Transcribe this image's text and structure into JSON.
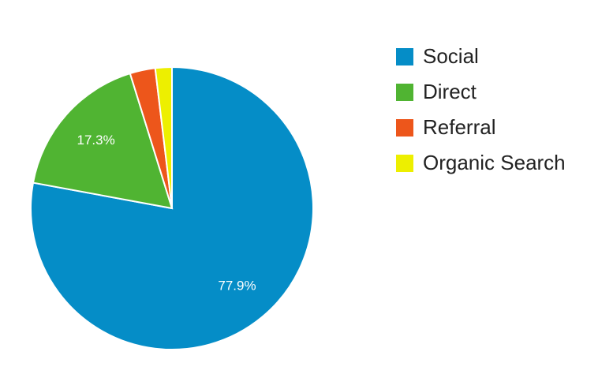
{
  "chart_data": {
    "type": "pie",
    "categories": [
      "Social",
      "Direct",
      "Referral",
      "Organic Search"
    ],
    "values": [
      77.9,
      17.3,
      2.9,
      1.9
    ],
    "value_labels": [
      "77.9%",
      "17.3%",
      null,
      null
    ],
    "colors": [
      "#058dc7",
      "#50b432",
      "#ed561b",
      "#edef00"
    ],
    "legend": "right"
  }
}
